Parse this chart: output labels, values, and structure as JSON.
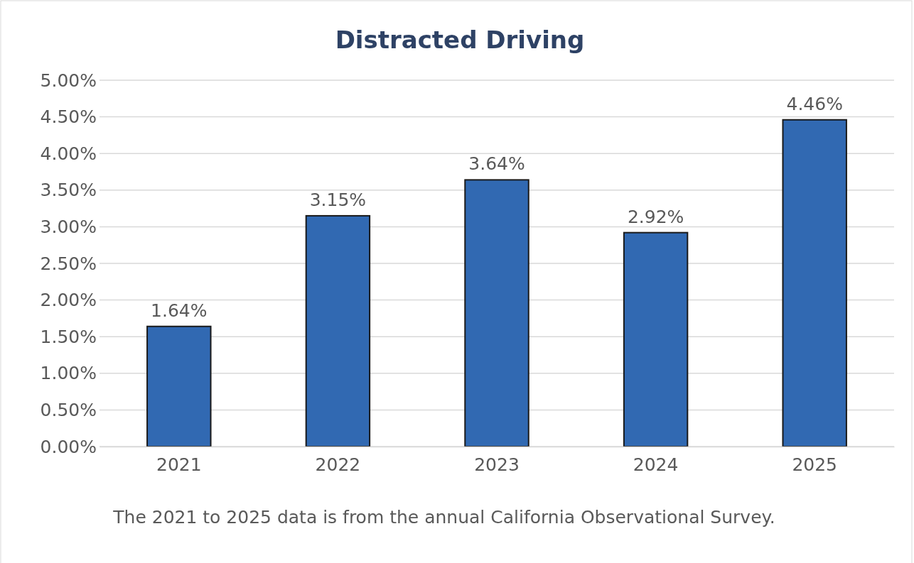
{
  "chart_data": {
    "type": "bar",
    "title": "Distracted Driving",
    "categories": [
      "2021",
      "2022",
      "2023",
      "2024",
      "2025"
    ],
    "values": [
      1.64,
      3.15,
      3.64,
      2.92,
      4.46
    ],
    "value_labels": [
      "1.64%",
      "3.15%",
      "3.64%",
      "2.92%",
      "4.46%"
    ],
    "color": "#3169b2",
    "ylim": [
      0,
      5
    ],
    "yticks": [
      {
        "value": 0,
        "label": "0.00%"
      },
      {
        "value": 0.5,
        "label": "0.50%"
      },
      {
        "value": 1,
        "label": "1.00%"
      },
      {
        "value": 1.5,
        "label": "1.50%"
      },
      {
        "value": 2,
        "label": "2.00%"
      },
      {
        "value": 2.5,
        "label": "2.50%"
      },
      {
        "value": 3,
        "label": "3.00%"
      },
      {
        "value": 3.5,
        "label": "3.50%"
      },
      {
        "value": 4,
        "label": "4.00%"
      },
      {
        "value": 4.5,
        "label": "4.50%"
      },
      {
        "value": 5,
        "label": "5.00%"
      }
    ],
    "grid": "y",
    "annotations": [
      "The 2021 to 2025 data is from the annual California Observational Survey."
    ]
  }
}
